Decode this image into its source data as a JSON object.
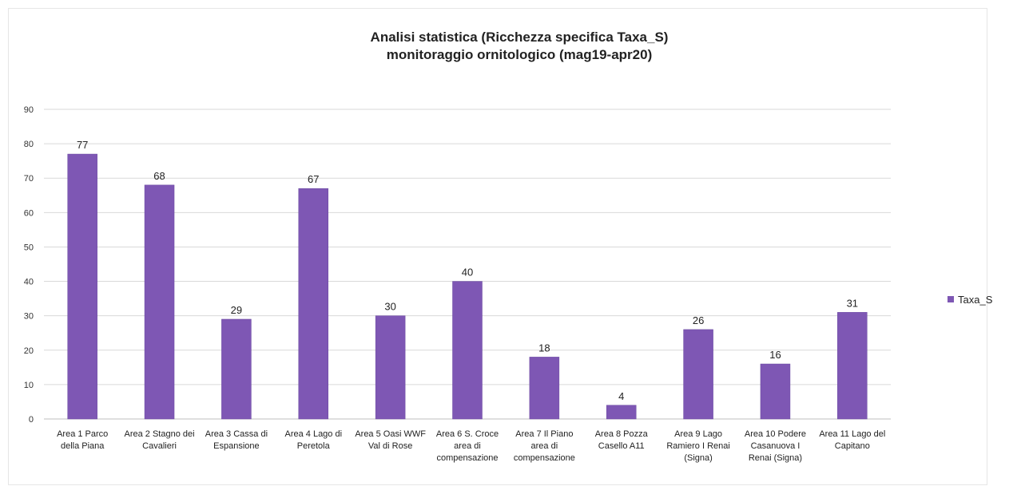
{
  "chart_data": {
    "type": "bar",
    "title_lines": [
      "Analisi statistica (Ricchezza specifica Taxa_S)",
      "monitoraggio ornitologico (mag19-apr20)"
    ],
    "categories": [
      [
        "Area 1 Parco",
        "della Piana"
      ],
      [
        "Area 2 Stagno dei",
        "Cavalieri"
      ],
      [
        "Area 3 Cassa di",
        "Espansione"
      ],
      [
        "Area 4 Lago di",
        "Peretola"
      ],
      [
        "Area 5 Oasi WWF",
        "Val di Rose"
      ],
      [
        "Area 6 S. Croce",
        "area di",
        "compensazione"
      ],
      [
        "Area 7 Il Piano",
        "area di",
        "compensazione"
      ],
      [
        "Area 8 Pozza",
        "Casello A11"
      ],
      [
        "Area 9 Lago",
        "Ramiero I Renai",
        "(Signa)"
      ],
      [
        "Area 10 Podere",
        "Casanuova I",
        "Renai (Signa)"
      ],
      [
        "Area 11  Lago del",
        "Capitano"
      ]
    ],
    "series": [
      {
        "name": "Taxa_S",
        "values": [
          77,
          68,
          29,
          67,
          30,
          40,
          18,
          4,
          26,
          16,
          31
        ],
        "color": "#7e57b4"
      }
    ],
    "ylim": [
      0,
      90
    ],
    "yticks": [
      0,
      10,
      20,
      30,
      40,
      50,
      60,
      70,
      80,
      90
    ],
    "grid": true,
    "legend_position": "right"
  }
}
